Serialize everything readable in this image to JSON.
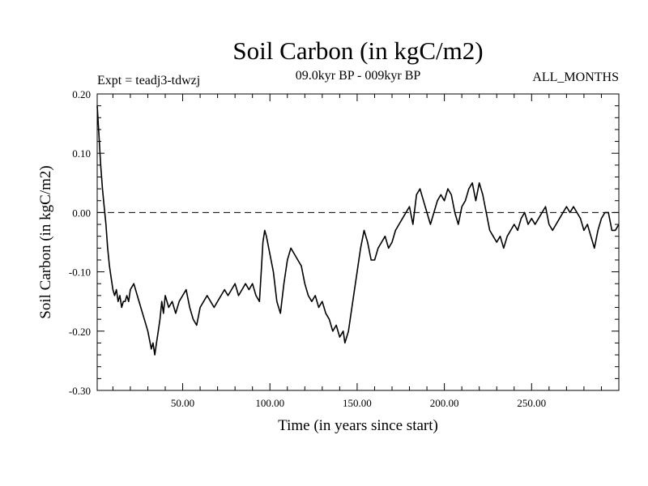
{
  "chart_data": {
    "type": "line",
    "title": "Soil Carbon (in kgC/m2)",
    "subtitle_left": "Expt = teadj3-tdwzj",
    "subtitle_center": "09.0kyr BP - 009kyr BP",
    "subtitle_right": "ALL_MONTHS",
    "xlabel": "Time (in years since start)",
    "ylabel": "Soil Carbon (in kgC/m2)",
    "xlim": [
      1,
      300
    ],
    "ylim": [
      -0.3,
      0.2
    ],
    "x_ticks": [
      50,
      100,
      150,
      200,
      250
    ],
    "x_tick_labels": [
      "50.00",
      "100.00",
      "150.00",
      "200.00",
      "250.00"
    ],
    "y_ticks": [
      0.2,
      0.1,
      0.0,
      -0.1,
      -0.2,
      -0.3
    ],
    "y_tick_labels": [
      "0.20",
      "0.10",
      "0.00",
      "-0.10",
      "-0.20",
      "-0.30"
    ],
    "reference_line": {
      "y": 0.0,
      "style": "dashed"
    },
    "series": [
      {
        "name": "Soil Carbon",
        "x": [
          1,
          2,
          3,
          4,
          5,
          6,
          7,
          8,
          9,
          10,
          11,
          12,
          13,
          14,
          15,
          16,
          17,
          18,
          19,
          20,
          22,
          24,
          26,
          28,
          30,
          32,
          33,
          34,
          35,
          36,
          37,
          38,
          39,
          40,
          42,
          44,
          46,
          48,
          50,
          52,
          54,
          56,
          58,
          60,
          62,
          64,
          66,
          68,
          70,
          72,
          74,
          76,
          78,
          80,
          82,
          84,
          86,
          88,
          90,
          92,
          94,
          95,
          96,
          97,
          98,
          100,
          102,
          104,
          106,
          108,
          110,
          112,
          114,
          116,
          118,
          120,
          122,
          124,
          126,
          128,
          130,
          132,
          134,
          136,
          138,
          140,
          142,
          143,
          144,
          145,
          146,
          148,
          150,
          152,
          154,
          156,
          158,
          160,
          162,
          164,
          166,
          168,
          170,
          172,
          174,
          176,
          178,
          180,
          182,
          184,
          186,
          188,
          190,
          192,
          194,
          196,
          198,
          200,
          202,
          204,
          206,
          208,
          210,
          212,
          214,
          216,
          218,
          220,
          222,
          224,
          226,
          228,
          230,
          232,
          234,
          236,
          238,
          240,
          242,
          244,
          246,
          248,
          250,
          252,
          254,
          256,
          258,
          260,
          262,
          264,
          266,
          268,
          270,
          272,
          274,
          276,
          278,
          280,
          282,
          284,
          286,
          288,
          290,
          292,
          294,
          296,
          298,
          300
        ],
        "values": [
          0.18,
          0.13,
          0.08,
          0.04,
          0.01,
          -0.02,
          -0.06,
          -0.09,
          -0.11,
          -0.13,
          -0.14,
          -0.13,
          -0.15,
          -0.14,
          -0.16,
          -0.15,
          -0.15,
          -0.14,
          -0.15,
          -0.13,
          -0.12,
          -0.14,
          -0.16,
          -0.18,
          -0.2,
          -0.23,
          -0.22,
          -0.24,
          -0.22,
          -0.2,
          -0.18,
          -0.15,
          -0.17,
          -0.14,
          -0.16,
          -0.15,
          -0.17,
          -0.15,
          -0.14,
          -0.13,
          -0.16,
          -0.18,
          -0.19,
          -0.16,
          -0.15,
          -0.14,
          -0.15,
          -0.16,
          -0.15,
          -0.14,
          -0.13,
          -0.14,
          -0.13,
          -0.12,
          -0.14,
          -0.13,
          -0.12,
          -0.13,
          -0.12,
          -0.14,
          -0.15,
          -0.1,
          -0.05,
          -0.03,
          -0.04,
          -0.07,
          -0.1,
          -0.15,
          -0.17,
          -0.12,
          -0.08,
          -0.06,
          -0.07,
          -0.08,
          -0.09,
          -0.12,
          -0.14,
          -0.15,
          -0.14,
          -0.16,
          -0.15,
          -0.17,
          -0.18,
          -0.2,
          -0.19,
          -0.21,
          -0.2,
          -0.22,
          -0.21,
          -0.2,
          -0.18,
          -0.14,
          -0.1,
          -0.06,
          -0.03,
          -0.05,
          -0.08,
          -0.08,
          -0.06,
          -0.05,
          -0.04,
          -0.06,
          -0.05,
          -0.03,
          -0.02,
          -0.01,
          0.0,
          0.01,
          -0.02,
          0.03,
          0.04,
          0.02,
          0.0,
          -0.02,
          0.0,
          0.02,
          0.03,
          0.02,
          0.04,
          0.03,
          0.0,
          -0.02,
          0.01,
          0.02,
          0.04,
          0.05,
          0.02,
          0.05,
          0.03,
          0.0,
          -0.03,
          -0.04,
          -0.05,
          -0.04,
          -0.06,
          -0.04,
          -0.03,
          -0.02,
          -0.03,
          -0.01,
          0.0,
          -0.02,
          -0.01,
          -0.02,
          -0.01,
          0.0,
          0.01,
          -0.02,
          -0.03,
          -0.02,
          -0.01,
          0.0,
          0.01,
          0.0,
          0.01,
          0.0,
          -0.01,
          -0.03,
          -0.02,
          -0.04,
          -0.06,
          -0.03,
          -0.01,
          0.0,
          0.0,
          -0.03,
          -0.03,
          -0.02
        ]
      }
    ]
  }
}
